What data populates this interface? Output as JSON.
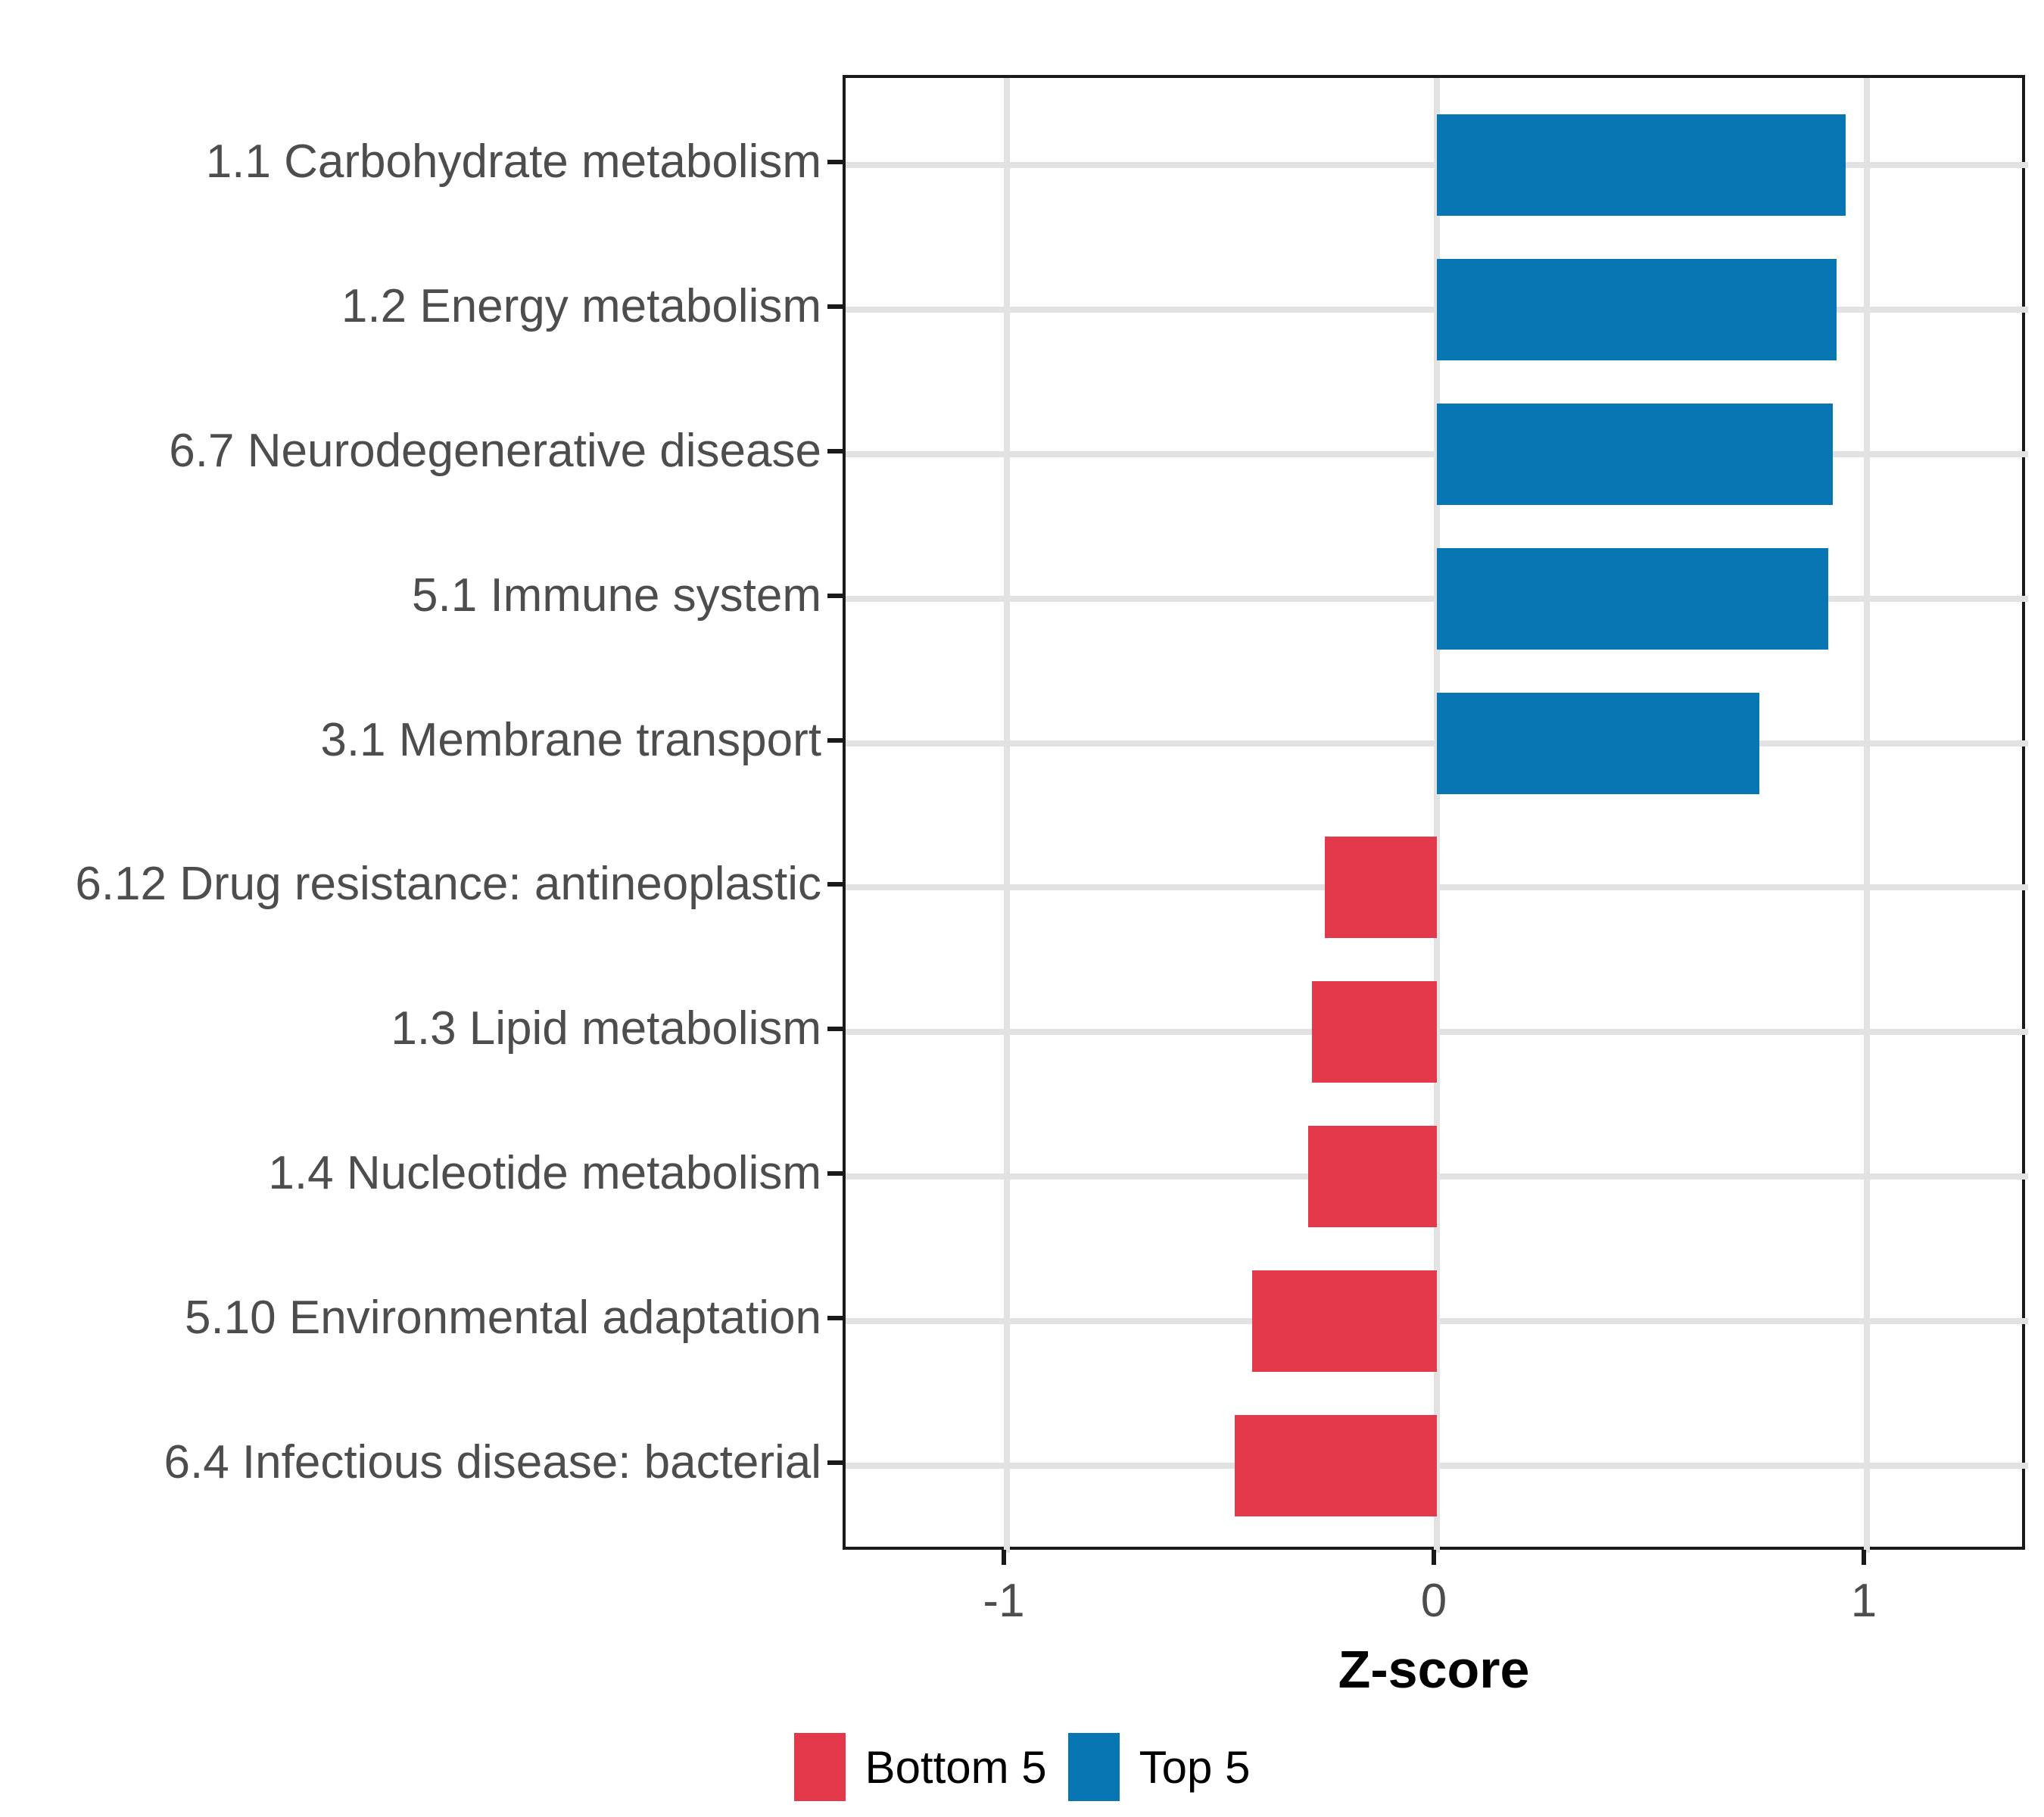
{
  "chart_data": {
    "type": "bar",
    "orientation": "horizontal",
    "title": "",
    "xlabel": "Z-score",
    "ylabel": "",
    "categories": [
      "1.1 Carbohydrate metabolism",
      "1.2 Energy metabolism",
      "6.7 Neurodegenerative disease",
      "5.1 Immune system",
      "3.1 Membrane transport",
      "6.12 Drug resistance: antineoplastic",
      "1.3 Lipid metabolism",
      "1.4 Nucleotide metabolism",
      "5.10 Environmental adaptation",
      "6.4 Infectious disease: bacterial"
    ],
    "values": [
      0.95,
      0.93,
      0.92,
      0.91,
      0.75,
      -0.26,
      -0.29,
      -0.3,
      -0.43,
      -0.47
    ],
    "groups": [
      "Top 5",
      "Top 5",
      "Top 5",
      "Top 5",
      "Top 5",
      "Bottom 5",
      "Bottom 5",
      "Bottom 5",
      "Bottom 5",
      "Bottom 5"
    ],
    "xlim": [
      -1.375,
      1.375
    ],
    "x_ticks": [
      -1,
      0,
      1
    ],
    "x_tick_labels": [
      "-1",
      "0",
      "1"
    ],
    "grid": "major gridlines at x ticks and category centers",
    "legend_position": "bottom",
    "legend": [
      {
        "label": "Bottom 5",
        "color": "#e4394b"
      },
      {
        "label": "Top 5",
        "color": "#0876b2"
      }
    ]
  },
  "colors": {
    "bar_positive": "#0876b2",
    "bar_negative": "#e4394b",
    "gridline": "#e2e2e2",
    "panel_border": "#1a1a1a",
    "axis_text": "#4d4d4d",
    "title_text": "#000000",
    "background": "#ffffff"
  }
}
